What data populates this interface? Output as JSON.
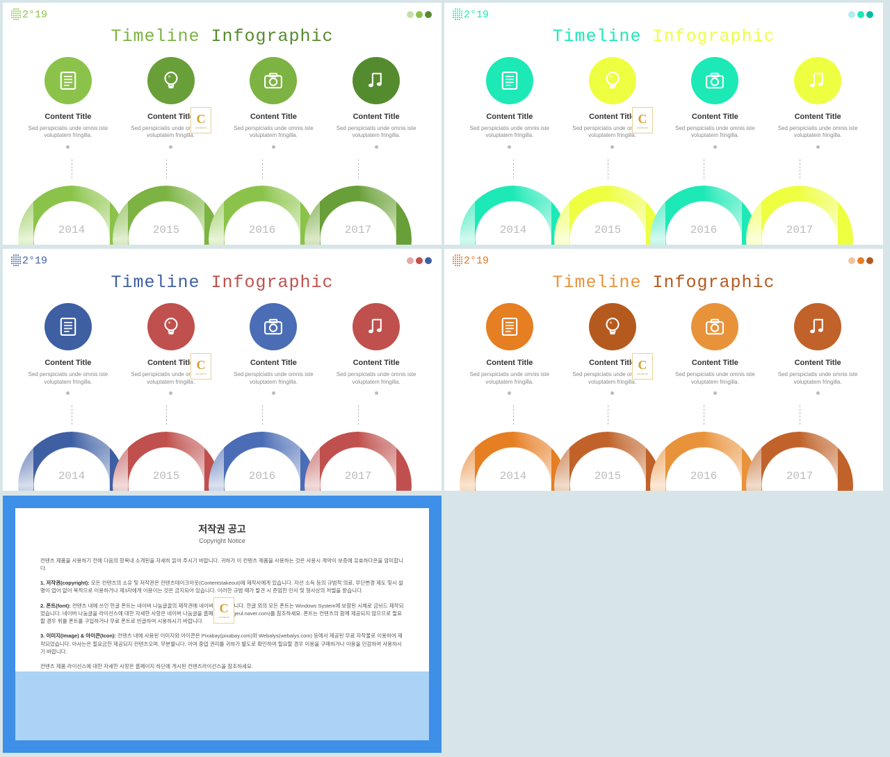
{
  "year_label": "2°19",
  "title_word1": "Timeline",
  "title_word2": "Infographic",
  "content_title": "Content Title",
  "content_desc": "Sed perspiciatis unde omnis iste voluptatem fringilla.",
  "years": [
    "2014",
    "2015",
    "2016",
    "2017"
  ],
  "watermark_letter": "C",
  "watermark_text": "CONTENTS",
  "icons": [
    "document",
    "bulb",
    "camera",
    "music"
  ],
  "slides": [
    {
      "title_colors": [
        "#7cb342",
        "#558b2f"
      ],
      "corner_dots": [
        "#c5e1a5",
        "#8bc34a",
        "#558b2f"
      ],
      "logo_color": "#8bc34a",
      "icon_bg": [
        "#8bc34a",
        "#689f38",
        "#7cb342",
        "#558b2f"
      ],
      "arc_colors": [
        "#8bc34a",
        "#7cb342",
        "#8bc34a",
        "#689f38"
      ],
      "arc_fade_colors": [
        "#e8f5d8",
        "#e1efcf",
        "#e8f5d8",
        "#dce9c8"
      ]
    },
    {
      "title_colors": [
        "#1de9b6",
        "#eeff41"
      ],
      "corner_dots": [
        "#b2ebf2",
        "#1de9b6",
        "#00bfa5"
      ],
      "logo_color": "#1de9b6",
      "icon_bg": [
        "#1de9b6",
        "#eeff41",
        "#1de9b6",
        "#eeff41"
      ],
      "arc_colors": [
        "#1de9b6",
        "#eeff41",
        "#1de9b6",
        "#eeff41"
      ],
      "arc_fade_colors": [
        "#d4f9ef",
        "#fbffd9",
        "#d4f9ef",
        "#fbffd9"
      ]
    },
    {
      "title_colors": [
        "#3f5fa3",
        "#c0504d"
      ],
      "corner_dots": [
        "#e8a8a8",
        "#c0504d",
        "#3f5fa3"
      ],
      "logo_color": "#3f5fa3",
      "icon_bg": [
        "#3f5fa3",
        "#c0504d",
        "#4a6db5",
        "#c0504d"
      ],
      "arc_colors": [
        "#3f5fa3",
        "#c0504d",
        "#4a6db5",
        "#c0504d"
      ],
      "arc_fade_colors": [
        "#d8dfed",
        "#f0dcdb",
        "#dae1ef",
        "#f0dcdb"
      ]
    },
    {
      "title_colors": [
        "#e8933a",
        "#b55a1e"
      ],
      "corner_dots": [
        "#f2c49d",
        "#e67e22",
        "#b55a1e"
      ],
      "logo_color": "#d97828",
      "icon_bg": [
        "#e67e22",
        "#b55a1e",
        "#e8933a",
        "#c0622a"
      ],
      "arc_colors": [
        "#e67e22",
        "#c0622a",
        "#e8933a",
        "#c0622a"
      ],
      "arc_fade_colors": [
        "#f9e5d3",
        "#f0dccb",
        "#fae8d7",
        "#f0dccb"
      ]
    }
  ],
  "notice": {
    "border_color": "#3d8fe8",
    "light_half_color": "#aad3f5",
    "title": "저작권 공고",
    "subtitle": "Copyright Notice",
    "p1": "컨텐츠 제품을 사용하기 전에 다음의 항목내 소개된을 자세히 읽어 주시기 바랍니다. 귀하가 이 컨텐츠 제품을 사용하는 것은 사용시 계약이 보증에 유효하다은을 암미합니다.",
    "p2_label": "1. 저작권(copyright):",
    "p2": "모든 컨텐츠의 소유 및 저작권은 컨텐츠테이크아웃(Contentstakeout)에 제작사에게 있습니다. 자선 소득 등의 규범적 의료, 무단변경 제도 및시 설명이 업어 없어 목적으로 이용하거나 제3자에게 이용이는 것은 금지되어 있습니다. 이러한 규범 때가 발견 시 준엄한 민사 및 형사상의 처벌을 받습니다.",
    "p3_label": "2. 폰트(font):",
    "p3": "컨텐츠 내에 쓰인 한글 폰트는 네이버 나눔글꼴의 제작권에 네이버 제작권입니다. 한글 외의 모든 폰트는 Windows System에 보함된 시체로 금뉘드 제작되었습니다. 네이버 나눔글을 라이선스에 대한 자세한 사항은 네이버 나눔글을 홈페이지(hangeul.naver.com)를 참조하세요. 폰트는 컨텐츠의 함께 제공되지 않으므로 필요할 경우 위를 폰트를 구입하거나 무료 폰트로 빈글하여 시용하시기 바랍니다.",
    "p4_label": "3. 이미지(Image) & 아이콘(Icon):",
    "p4": "컨텐츠 내에 사용된 이미지와 아이콘은 Pixabay(pixabay.com)와 Webalys(webalys.com) 등에서 제공된 무료 자작물로 이용하여 제작되었습니다. 아사는은 필요금한 제공되지 컨텐츠오며, 무분별니다. 아여 중업 권리를 귀하가 별도로 확인하여 필요할 경우 이용을 구매하거나 이용을 민감하여 사용하시기 바랍니다.",
    "p5": "컨텐츠 제품 라이선스에 대한 자세한 사항은 홈페이지 하단에 게시된 컨텐츠라이선스을 참조하세요."
  }
}
